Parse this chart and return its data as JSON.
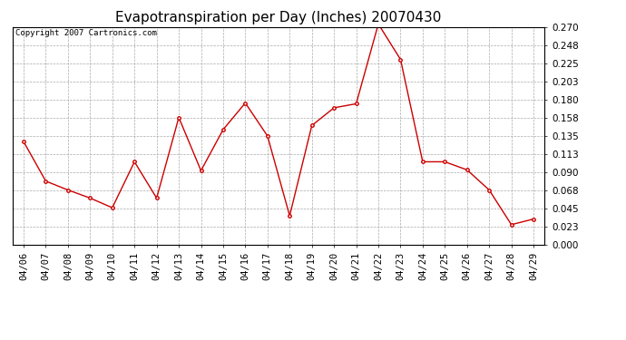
{
  "title": "Evapotranspiration per Day (Inches) 20070430",
  "copyright_text": "Copyright 2007 Cartronics.com",
  "dates": [
    "04/06",
    "04/07",
    "04/08",
    "04/09",
    "04/10",
    "04/11",
    "04/12",
    "04/13",
    "04/14",
    "04/15",
    "04/16",
    "04/17",
    "04/18",
    "04/19",
    "04/20",
    "04/21",
    "04/22",
    "04/23",
    "04/24",
    "04/25",
    "04/26",
    "04/27",
    "04/28",
    "04/29"
  ],
  "values": [
    0.128,
    0.079,
    0.068,
    0.058,
    0.046,
    0.103,
    0.058,
    0.158,
    0.092,
    0.143,
    0.176,
    0.135,
    0.036,
    0.148,
    0.17,
    0.175,
    0.274,
    0.23,
    0.103,
    0.103,
    0.093,
    0.068,
    0.025,
    0.032
  ],
  "line_color": "#cc0000",
  "marker": "o",
  "marker_size": 2.5,
  "bg_color": "#ffffff",
  "plot_bg_color": "#ffffff",
  "grid_color": "#aaaaaa",
  "ylim": [
    0.0,
    0.27
  ],
  "yticks": [
    0.0,
    0.023,
    0.045,
    0.068,
    0.09,
    0.113,
    0.135,
    0.158,
    0.18,
    0.203,
    0.225,
    0.248,
    0.27
  ],
  "title_fontsize": 11,
  "copyright_fontsize": 6.5,
  "tick_fontsize": 7.5
}
